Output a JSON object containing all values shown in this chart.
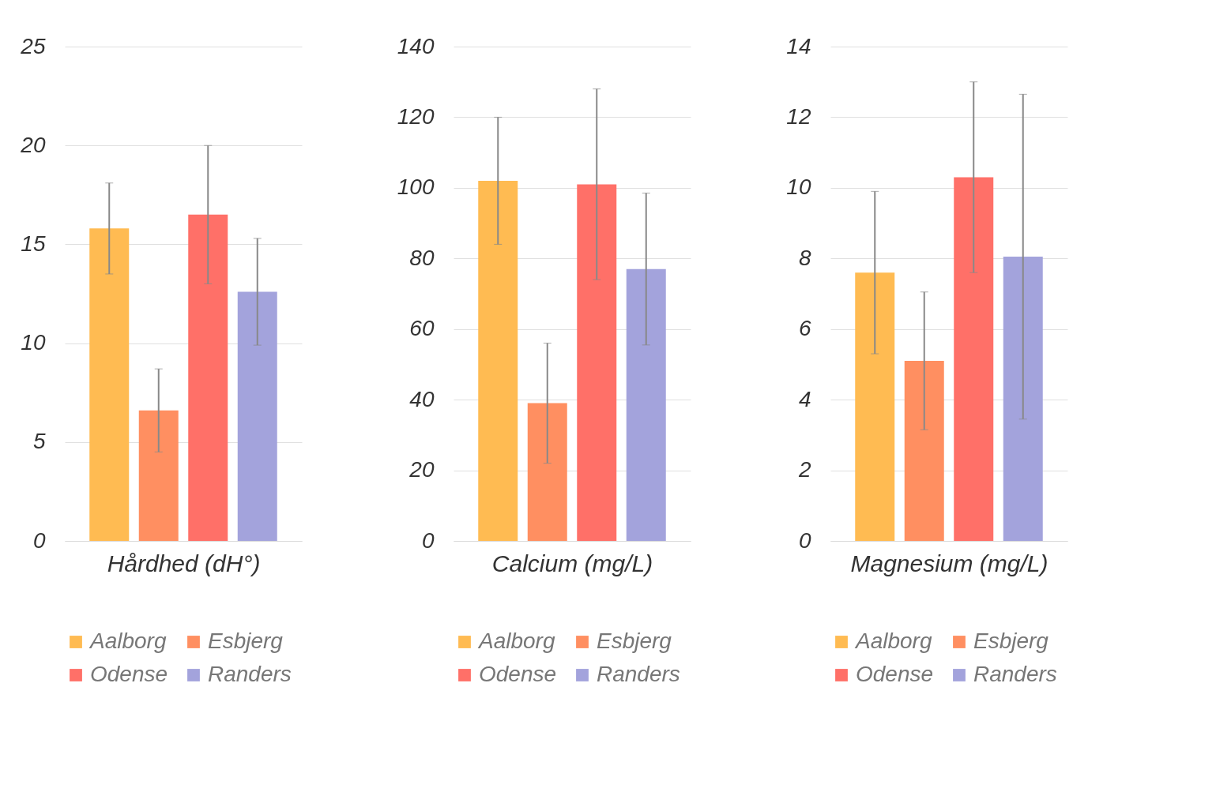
{
  "chart_data": [
    {
      "type": "bar",
      "xlabel": "Hårdhed (dH°)",
      "categories": [
        null
      ],
      "ylim": [
        0,
        25
      ],
      "yticks": [
        0,
        5,
        10,
        15,
        20,
        25
      ],
      "grid": "y",
      "legend": "bottom",
      "series": [
        {
          "name": "Aalborg",
          "color": "#ffbb52",
          "values": [
            15.8
          ],
          "errors": [
            2.3
          ]
        },
        {
          "name": "Esbjerg",
          "color": "#ff8f61",
          "values": [
            6.6
          ],
          "errors": [
            2.1
          ]
        },
        {
          "name": "Odense",
          "color": "#ff7068",
          "values": [
            16.5
          ],
          "errors": [
            3.5
          ]
        },
        {
          "name": "Randers",
          "color": "#a3a3dc",
          "values": [
            12.6
          ],
          "errors": [
            2.7
          ]
        }
      ]
    },
    {
      "type": "bar",
      "xlabel": "Calcium (mg/L)",
      "categories": [
        null
      ],
      "ylim": [
        0,
        140
      ],
      "yticks": [
        0,
        20,
        40,
        60,
        80,
        100,
        120,
        140
      ],
      "grid": "y",
      "legend": "bottom",
      "series": [
        {
          "name": "Aalborg",
          "color": "#ffbb52",
          "values": [
            102
          ],
          "errors": [
            18
          ]
        },
        {
          "name": "Esbjerg",
          "color": "#ff8f61",
          "values": [
            39
          ],
          "errors": [
            17
          ]
        },
        {
          "name": "Odense",
          "color": "#ff7068",
          "values": [
            101
          ],
          "errors": [
            27
          ]
        },
        {
          "name": "Randers",
          "color": "#a3a3dc",
          "values": [
            77
          ],
          "errors": [
            21.5
          ]
        }
      ]
    },
    {
      "type": "bar",
      "xlabel": "Magnesium (mg/L)",
      "categories": [
        null
      ],
      "ylim": [
        0,
        14
      ],
      "yticks": [
        0,
        2,
        4,
        6,
        8,
        10,
        12,
        14
      ],
      "grid": "y",
      "legend": "bottom",
      "series": [
        {
          "name": "Aalborg",
          "color": "#ffbb52",
          "values": [
            7.6
          ],
          "errors": [
            2.3
          ]
        },
        {
          "name": "Esbjerg",
          "color": "#ff8f61",
          "values": [
            5.1
          ],
          "errors": [
            1.95
          ]
        },
        {
          "name": "Odense",
          "color": "#ff7068",
          "values": [
            10.3
          ],
          "errors": [
            2.7
          ]
        },
        {
          "name": "Randers",
          "color": "#a3a3dc",
          "values": [
            8.05
          ],
          "errors": [
            4.6
          ]
        }
      ]
    }
  ]
}
